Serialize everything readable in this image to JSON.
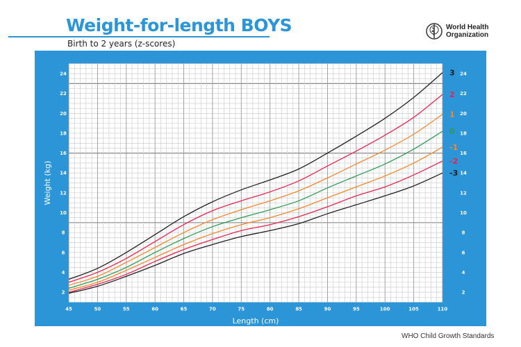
{
  "header": {
    "title": "Weight-for-length BOYS",
    "subtitle": "Birth to 2 years (z-scores)",
    "logo_text": [
      "World Health",
      "Organization"
    ]
  },
  "footer": "WHO Child Growth Standards",
  "chart_data": {
    "type": "line",
    "title": "Weight-for-length BOYS",
    "subtitle": "Birth to 2 years (z-scores)",
    "xlabel": "Length (cm)",
    "ylabel": "Weight (kg)",
    "xlim": [
      45,
      110
    ],
    "ylim": [
      1,
      25
    ],
    "xticks": [
      45,
      50,
      55,
      60,
      65,
      70,
      75,
      80,
      85,
      90,
      95,
      100,
      105,
      110
    ],
    "yticks": [
      2,
      4,
      6,
      8,
      10,
      12,
      14,
      16,
      18,
      20,
      22,
      24
    ],
    "grid": true,
    "x": [
      45,
      50,
      55,
      60,
      65,
      70,
      75,
      80,
      85,
      90,
      95,
      100,
      105,
      110
    ],
    "series": [
      {
        "name": "3",
        "color": "#231f20",
        "values": [
          3.3,
          4.4,
          6.0,
          7.8,
          9.6,
          11.1,
          12.3,
          13.3,
          14.4,
          16.0,
          17.7,
          19.5,
          21.6,
          24.1
        ]
      },
      {
        "name": "2",
        "color": "#e5254f",
        "values": [
          3.0,
          4.0,
          5.4,
          7.1,
          8.8,
          10.2,
          11.2,
          12.1,
          13.2,
          14.7,
          16.2,
          17.8,
          19.6,
          21.9
        ]
      },
      {
        "name": "1",
        "color": "#f58630",
        "values": [
          2.7,
          3.6,
          5.0,
          6.5,
          8.0,
          9.3,
          10.3,
          11.2,
          12.2,
          13.5,
          14.9,
          16.3,
          17.9,
          19.9
        ]
      },
      {
        "name": "0",
        "color": "#2e9a52",
        "values": [
          2.4,
          3.3,
          4.5,
          6.0,
          7.4,
          8.6,
          9.5,
          10.3,
          11.2,
          12.5,
          13.7,
          14.9,
          16.4,
          18.2
        ]
      },
      {
        "name": "-1",
        "color": "#f58630",
        "values": [
          2.2,
          3.0,
          4.2,
          5.5,
          6.8,
          7.9,
          8.8,
          9.5,
          10.4,
          11.5,
          12.6,
          13.7,
          15.0,
          16.6
        ]
      },
      {
        "name": "-2",
        "color": "#e5254f",
        "values": [
          2.0,
          2.8,
          3.8,
          5.1,
          6.3,
          7.3,
          8.2,
          8.8,
          9.6,
          10.6,
          11.7,
          12.6,
          13.8,
          15.2
        ]
      },
      {
        "name": "-3",
        "color": "#231f20",
        "values": [
          1.9,
          2.6,
          3.6,
          4.7,
          5.9,
          6.8,
          7.6,
          8.2,
          8.9,
          9.9,
          10.8,
          11.7,
          12.7,
          14.0
        ]
      }
    ]
  }
}
